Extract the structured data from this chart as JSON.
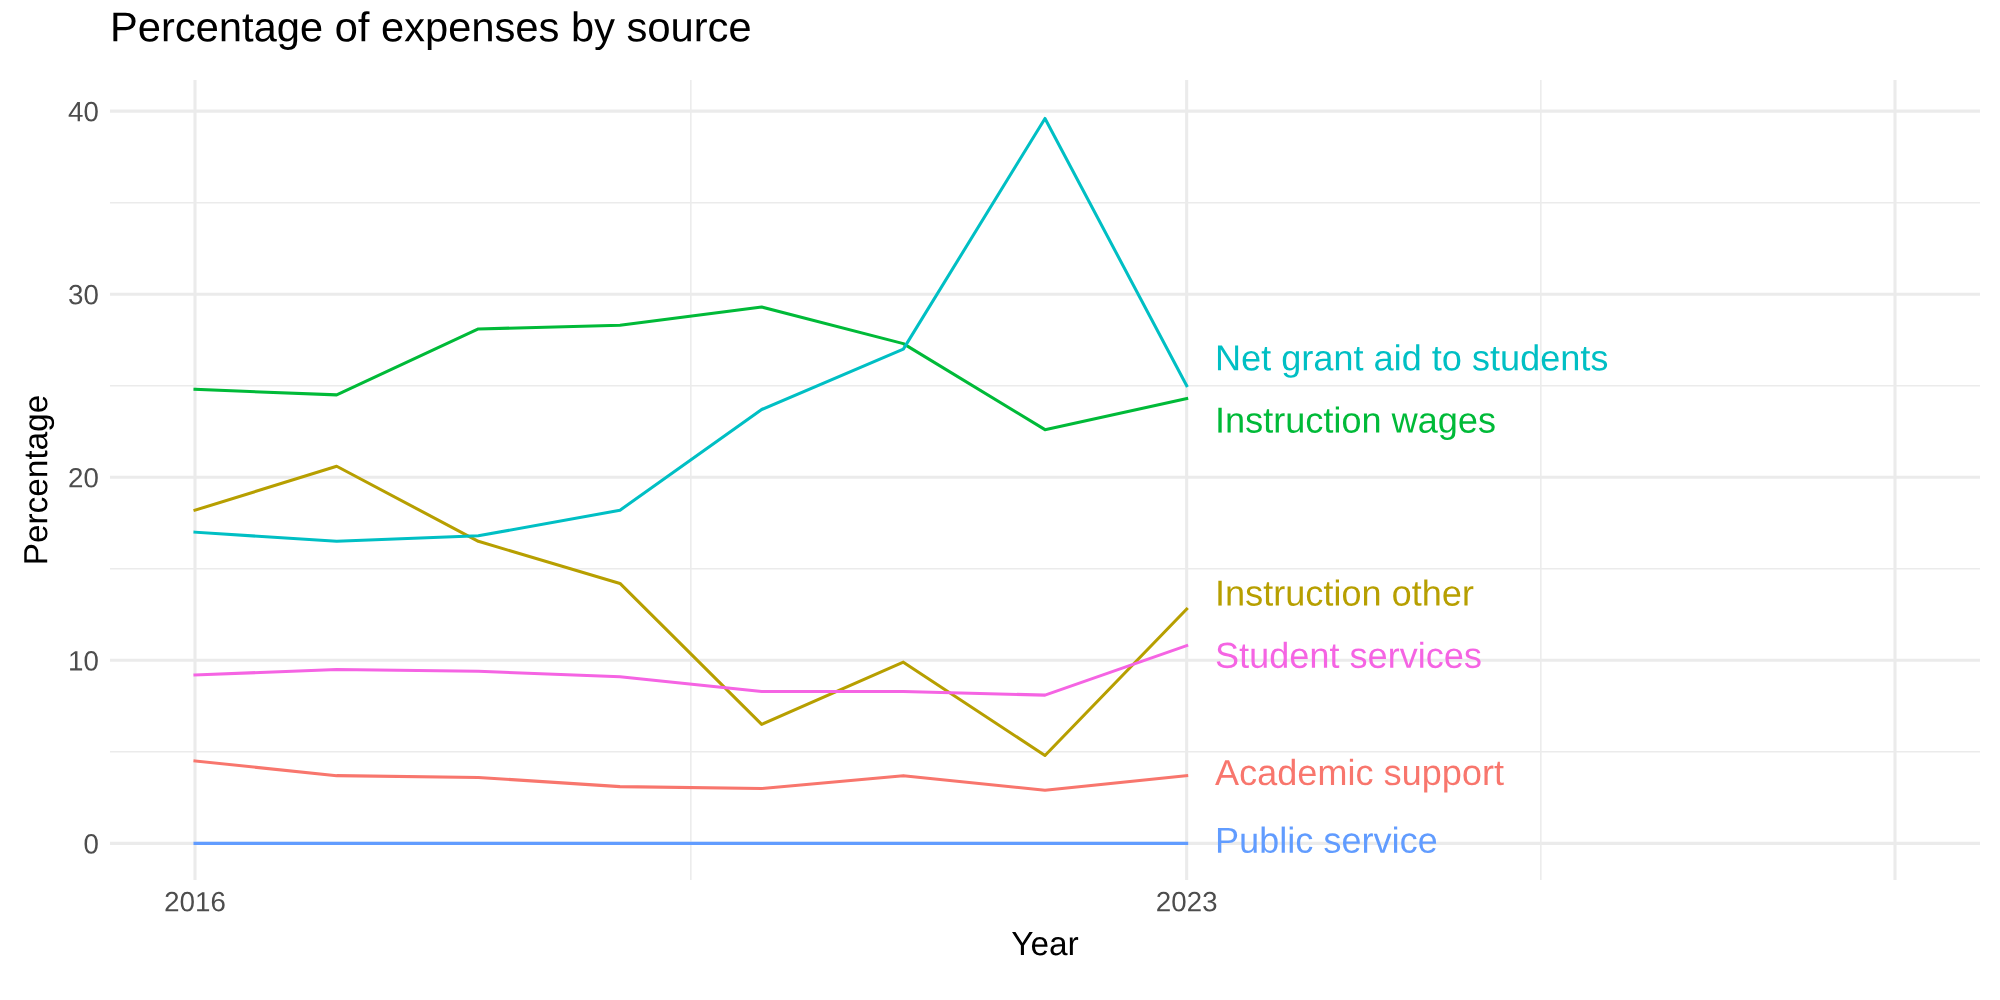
{
  "chart_data": {
    "type": "line",
    "title": "Percentage of expenses by source",
    "xlabel": "Year",
    "ylabel": "Percentage",
    "x": [
      2016,
      2017,
      2018,
      2019,
      2020,
      2021,
      2022,
      2023
    ],
    "series": [
      {
        "name": "Academic support",
        "color": "#f8766d",
        "values": [
          4.5,
          3.7,
          3.6,
          3.1,
          3.0,
          3.7,
          2.9,
          3.7
        ]
      },
      {
        "name": "Instruction other",
        "color": "#b79f00",
        "values": [
          18.2,
          20.6,
          16.5,
          14.2,
          6.5,
          9.9,
          4.8,
          12.8
        ]
      },
      {
        "name": "Instruction wages",
        "color": "#00ba38",
        "values": [
          24.8,
          24.5,
          28.1,
          28.3,
          29.3,
          27.3,
          22.6,
          24.3
        ]
      },
      {
        "name": "Net grant aid to students",
        "color": "#00bfc4",
        "values": [
          17.0,
          16.5,
          16.8,
          18.2,
          23.7,
          27.0,
          39.6,
          25.0
        ]
      },
      {
        "name": "Public service",
        "color": "#619cff",
        "values": [
          0,
          0,
          0,
          0,
          0,
          0,
          0,
          0
        ]
      },
      {
        "name": "Student services",
        "color": "#f564e3",
        "values": [
          9.2,
          9.5,
          9.4,
          9.1,
          8.3,
          8.3,
          8.1,
          10.8
        ]
      }
    ],
    "xlim": [
      2015.4,
      2028.6
    ],
    "xticks": [
      2016,
      2023,
      {
        "value": 2028,
        "label": null
      }
    ],
    "ylim": [
      -2,
      41.7
    ],
    "yticks": [
      0,
      10,
      20,
      30,
      40
    ],
    "grid": true,
    "legend": false,
    "marker": "none",
    "line_style": "solid"
  }
}
